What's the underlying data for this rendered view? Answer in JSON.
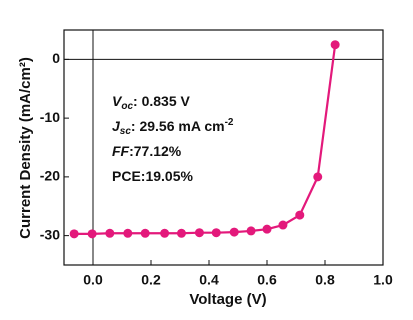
{
  "chart_data": {
    "type": "line",
    "xlabel": "Voltage (V)",
    "ylabel": "Current Density (mA/cm²)",
    "x": [
      -0.065,
      -0.003,
      0.058,
      0.12,
      0.18,
      0.247,
      0.305,
      0.367,
      0.425,
      0.487,
      0.545,
      0.6,
      0.655,
      0.713,
      0.775,
      0.835
    ],
    "series": [
      {
        "color": "#e3197b",
        "values": [
          -29.7,
          -29.7,
          -29.6,
          -29.6,
          -29.6,
          -29.6,
          -29.6,
          -29.5,
          -29.5,
          -29.4,
          -29.2,
          -28.9,
          -28.2,
          -26.5,
          -20,
          2.5
        ]
      }
    ],
    "xlim": [
      -0.1,
      1.0
    ],
    "ylim": [
      -35,
      5
    ],
    "xticks": [
      {
        "value": 0,
        "label": "0.0"
      },
      {
        "value": 0.2,
        "label": "0.2"
      },
      {
        "value": 0.4,
        "label": "0.4"
      },
      {
        "value": 0.6,
        "label": "0.6"
      },
      {
        "value": 0.8,
        "label": "0.8"
      },
      {
        "value": 1.0,
        "label": "1.0"
      }
    ],
    "yticks": [
      0,
      -10,
      -20,
      -30
    ],
    "reference_lines": {
      "x": 0,
      "y": 0
    },
    "annotations": [
      [
        {
          "text": "V",
          "style": "italic"
        },
        {
          "text": "oc",
          "style": "sub"
        },
        {
          "text": ": 0.835 V",
          "style": "plain"
        }
      ],
      [
        {
          "text": "J",
          "style": "italic"
        },
        {
          "text": "sc",
          "style": "sub"
        },
        {
          "text": ": 29.56 mA cm",
          "style": "plain"
        },
        {
          "text": "-2",
          "style": "sup"
        }
      ],
      [
        {
          "text": "FF",
          "style": "italic"
        },
        {
          "text": ":77.12%",
          "style": "plain"
        }
      ],
      [
        {
          "text": "PCE:19.05%",
          "style": "plain"
        }
      ]
    ]
  }
}
